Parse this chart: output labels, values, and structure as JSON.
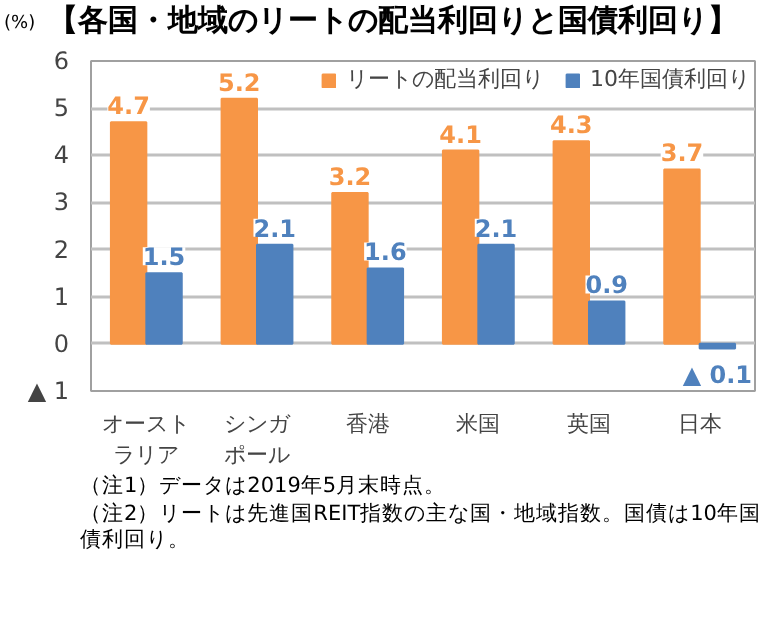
{
  "chart_data": {
    "type": "bar",
    "title": "【各国・地域のリートの配当利回りと国債利回り】",
    "ylabel": "(%)",
    "categories": [
      "オーストラリア",
      "シンガポール",
      "香港",
      "米国",
      "英国",
      "日本"
    ],
    "series": [
      {
        "name": "リートの配当利回り",
        "color": "#f79646",
        "values": [
          4.7,
          5.2,
          3.2,
          4.1,
          4.3,
          3.7
        ],
        "value_labels": [
          "4.7",
          "5.2",
          "3.2",
          "4.1",
          "4.3",
          "3.7"
        ]
      },
      {
        "name": "10年国債利回り",
        "color": "#4f81bd",
        "values": [
          1.5,
          2.1,
          1.6,
          2.1,
          0.9,
          -0.1
        ],
        "value_labels": [
          "1.5",
          "2.1",
          "1.6",
          "2.1",
          "0.9",
          null
        ]
      }
    ],
    "ylim": [
      -1,
      6
    ],
    "yticks": [
      {
        "value": -1,
        "label": "▲ 1"
      },
      0,
      1,
      2,
      3,
      4,
      5,
      6
    ],
    "grid": "y",
    "legend": "top right",
    "annotations": [
      {
        "text": "▲ 0.1",
        "x": "日本",
        "y": -0.1
      },
      "（注1）データは2019年5月末時点。",
      "（注2）リートは先進国REIT指数の主な国・地域指数。国債は10年国債利回り。"
    ]
  }
}
